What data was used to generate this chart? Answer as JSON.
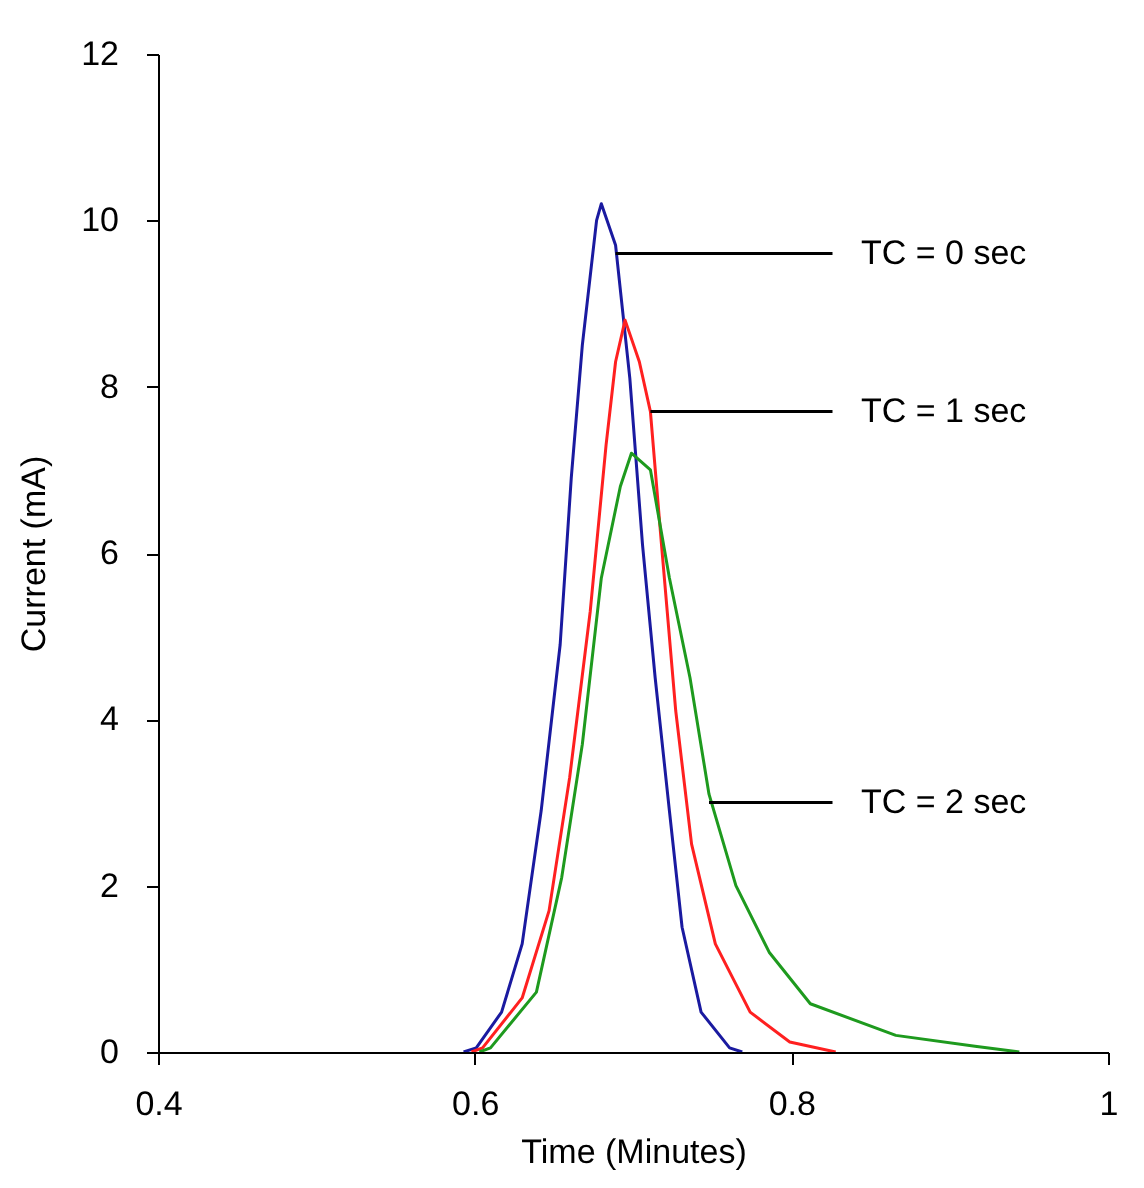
{
  "chart_data": {
    "type": "line",
    "xlabel": "Time (Minutes)",
    "ylabel": "Current (mA)",
    "xlim": [
      0.4,
      1
    ],
    "xticks": [
      0.4,
      0.6,
      0.8,
      1
    ],
    "ylim": [
      0,
      12
    ],
    "yticks": [
      0,
      2,
      4,
      6,
      8,
      10,
      12
    ],
    "grid": false,
    "marker": "none",
    "line_style": "solid",
    "series": [
      {
        "color": "#1a1aa0",
        "x": [
          0.593,
          0.601,
          0.617,
          0.63,
          0.642,
          0.654,
          0.661,
          0.668,
          0.677,
          0.68,
          0.689,
          0.698,
          0.706,
          0.714,
          0.723,
          0.731,
          0.743,
          0.761,
          0.769
        ],
        "values": [
          0,
          0.05,
          0.48,
          1.3,
          2.9,
          4.9,
          6.9,
          8.5,
          10.0,
          10.2,
          9.7,
          8.1,
          6.1,
          4.5,
          2.9,
          1.5,
          0.48,
          0.05,
          0
        ]
      },
      {
        "color": "#ff2020",
        "x": [
          0.598,
          0.605,
          0.63,
          0.647,
          0.66,
          0.673,
          0.683,
          0.689,
          0.695,
          0.704,
          0.711,
          0.718,
          0.727,
          0.737,
          0.752,
          0.774,
          0.799,
          0.828
        ],
        "values": [
          0,
          0.05,
          0.65,
          1.7,
          3.3,
          5.3,
          7.3,
          8.3,
          8.8,
          8.3,
          7.7,
          6.1,
          4.1,
          2.5,
          1.3,
          0.48,
          0.12,
          0
        ]
      },
      {
        "color": "#1e9a1e",
        "x": [
          0.603,
          0.61,
          0.639,
          0.655,
          0.668,
          0.68,
          0.692,
          0.699,
          0.711,
          0.723,
          0.736,
          0.748,
          0.765,
          0.786,
          0.812,
          0.866,
          0.916,
          0.944
        ],
        "values": [
          0,
          0.05,
          0.72,
          2.1,
          3.7,
          5.7,
          6.8,
          7.2,
          7.0,
          5.7,
          4.5,
          3.1,
          2.0,
          1.2,
          0.58,
          0.2,
          0.07,
          0
        ]
      }
    ],
    "annotations": [
      {
        "text": "TC = 0 sec",
        "x": 0.689,
        "y": 9.6
      },
      {
        "text": "TC = 1 sec",
        "x": 0.711,
        "y": 7.7
      },
      {
        "text": "TC = 2 sec",
        "x": 0.748,
        "y": 3.0
      }
    ]
  }
}
